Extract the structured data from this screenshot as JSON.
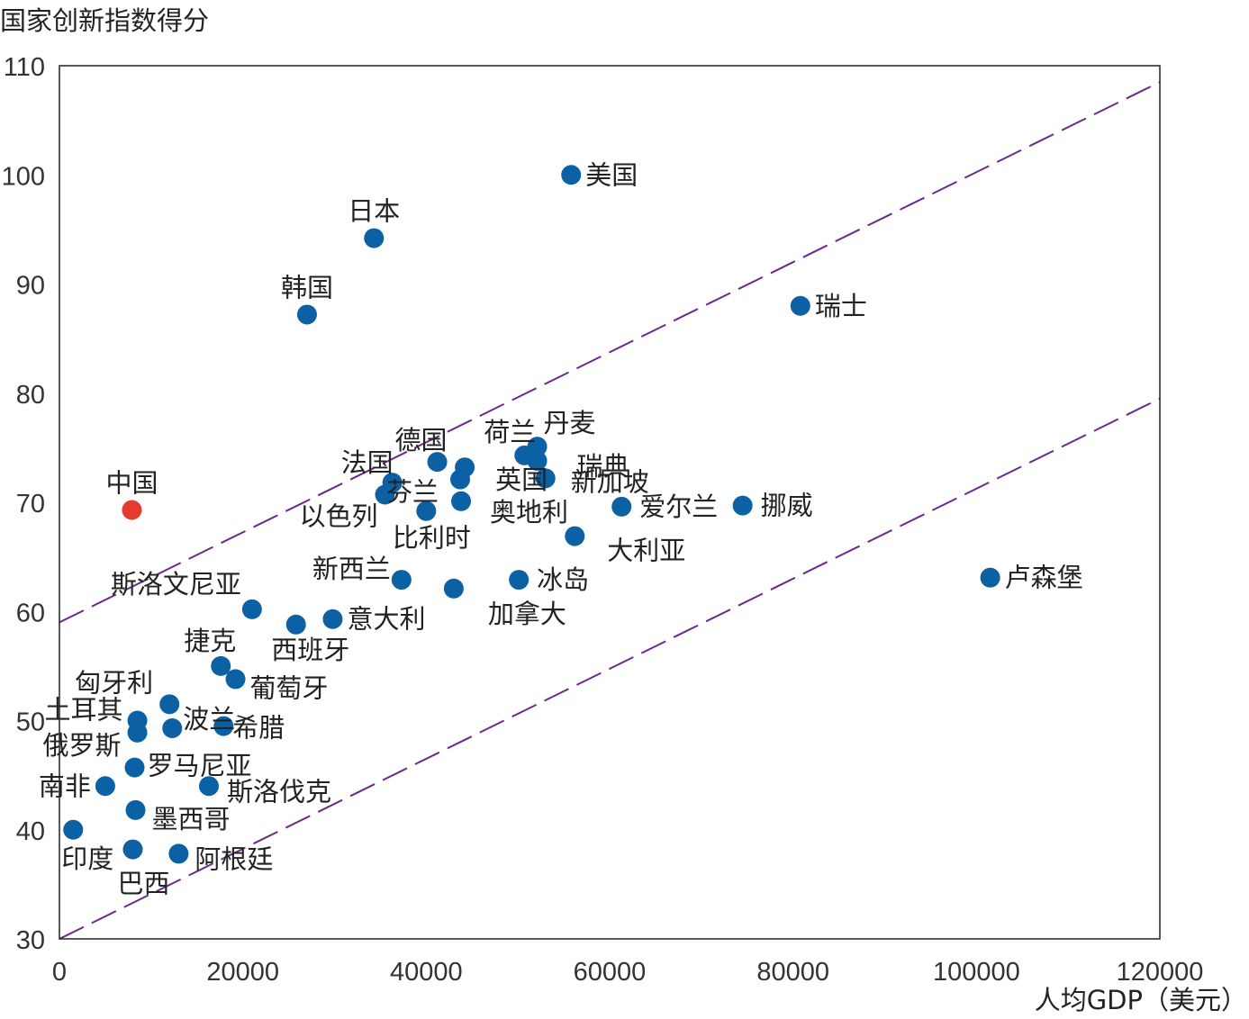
{
  "chart_data": {
    "type": "scatter",
    "ylabel": "国家创新指数得分",
    "xlabel": "人均GDP（美元）",
    "xlim": [
      0,
      120000
    ],
    "ylim": [
      30,
      110
    ],
    "xticks": [
      0,
      20000,
      40000,
      60000,
      80000,
      100000,
      120000
    ],
    "yticks": [
      30,
      40,
      50,
      60,
      70,
      80,
      90,
      100,
      110
    ],
    "grid": false,
    "colors": {
      "default": "#0b61a4",
      "highlight": "#e63a2e",
      "trend": "#6a2a8a"
    },
    "reference_lines": [
      {
        "x": [
          0,
          120000
        ],
        "y": [
          59,
          108.5
        ]
      },
      {
        "x": [
          0,
          120000
        ],
        "y": [
          30,
          79.5
        ]
      }
    ],
    "points": [
      {
        "name": "美国",
        "x": 55800,
        "y": 100
      },
      {
        "name": "日本",
        "x": 34300,
        "y": 94.2
      },
      {
        "name": "韩国",
        "x": 27000,
        "y": 87.2
      },
      {
        "name": "瑞士",
        "x": 80800,
        "y": 88
      },
      {
        "name": "中国",
        "x": 7900,
        "y": 69.3,
        "highlight": true
      },
      {
        "name": "丹麦",
        "x": 52100,
        "y": 75.1
      },
      {
        "name": "荷兰",
        "x": 50700,
        "y": 74.3
      },
      {
        "name": "瑞典",
        "x": 52100,
        "y": 73.8
      },
      {
        "name": "德国",
        "x": 41200,
        "y": 73.7
      },
      {
        "name": "英国",
        "x": 44200,
        "y": 73.2
      },
      {
        "name": "新加坡",
        "x": 53000,
        "y": 72.2
      },
      {
        "name": "法国",
        "x": 36300,
        "y": 71.8
      },
      {
        "name": "芬兰",
        "x": 43700,
        "y": 72.1
      },
      {
        "name": "以色列",
        "x": 35500,
        "y": 70.7
      },
      {
        "name": "奥地利",
        "x": 43800,
        "y": 70.1
      },
      {
        "name": "比利时",
        "x": 40000,
        "y": 69.2
      },
      {
        "name": "爱尔兰",
        "x": 61300,
        "y": 69.6
      },
      {
        "name": "挪威",
        "x": 74500,
        "y": 69.7
      },
      {
        "name": "大利亚",
        "x": 56200,
        "y": 66.9
      },
      {
        "name": "卢森堡",
        "x": 101500,
        "y": 63.1
      },
      {
        "name": "新西兰",
        "x": 37300,
        "y": 62.9
      },
      {
        "name": "冰岛",
        "x": 50100,
        "y": 62.9
      },
      {
        "name": "加拿大",
        "x": 43000,
        "y": 62.1
      },
      {
        "name": "斯洛文尼亚",
        "x": 21000,
        "y": 60.2
      },
      {
        "name": "意大利",
        "x": 29800,
        "y": 59.3
      },
      {
        "name": "西班牙",
        "x": 25800,
        "y": 58.8
      },
      {
        "name": "捷克",
        "x": 17600,
        "y": 55
      },
      {
        "name": "葡萄牙",
        "x": 19200,
        "y": 53.8
      },
      {
        "name": "匈牙利",
        "x": 12000,
        "y": 51.5
      },
      {
        "name": "土耳其",
        "x": 8500,
        "y": 50
      },
      {
        "name": "波兰",
        "x": 12300,
        "y": 49.3
      },
      {
        "name": "希腊",
        "x": 17900,
        "y": 49.5
      },
      {
        "name": "俄罗斯",
        "x": 8500,
        "y": 48.9
      },
      {
        "name": "罗马尼亚",
        "x": 8200,
        "y": 45.7
      },
      {
        "name": "南非",
        "x": 5000,
        "y": 44
      },
      {
        "name": "斯洛伐克",
        "x": 16300,
        "y": 44
      },
      {
        "name": "墨西哥",
        "x": 8300,
        "y": 41.8
      },
      {
        "name": "印度",
        "x": 1500,
        "y": 40
      },
      {
        "name": "巴西",
        "x": 8000,
        "y": 38.2
      },
      {
        "name": "阿根廷",
        "x": 13000,
        "y": 37.8
      }
    ]
  }
}
